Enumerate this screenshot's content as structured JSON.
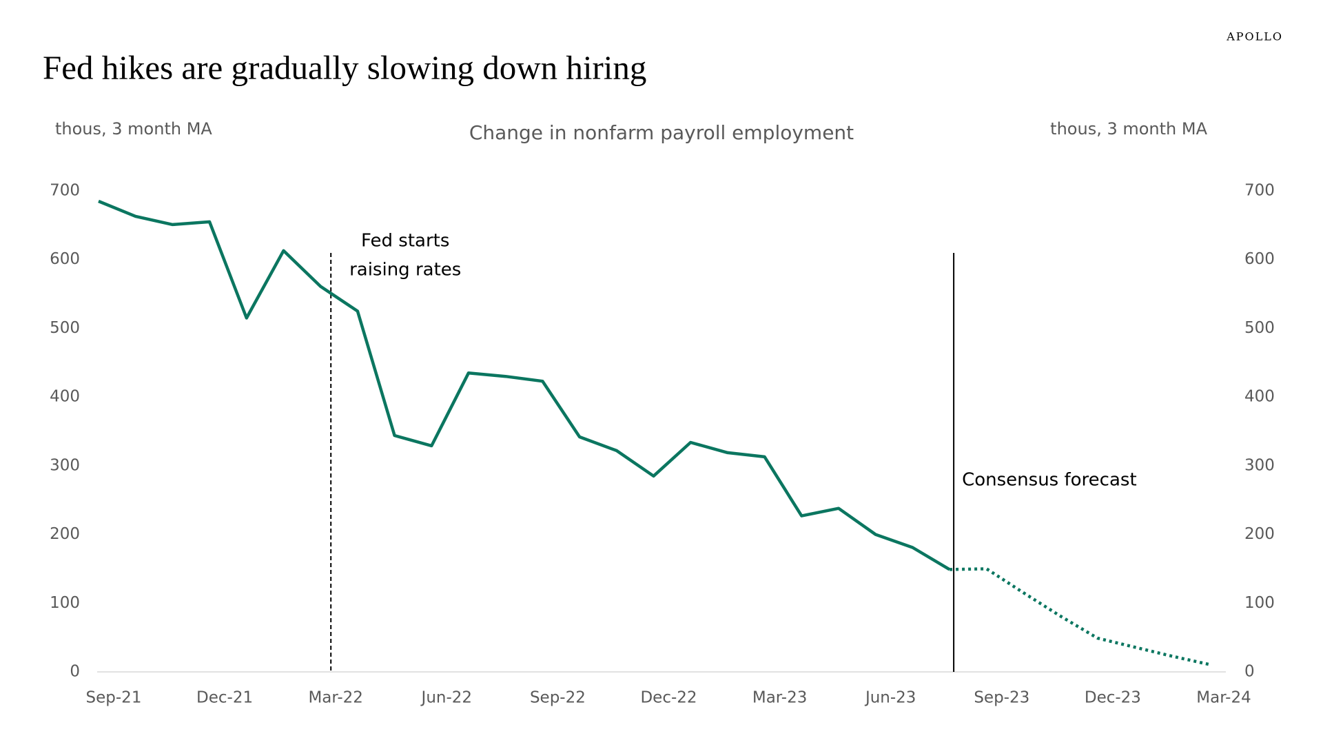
{
  "chart_data": {
    "type": "line",
    "brand": "APOLLO",
    "title": "Fed hikes are gradually slowing down hiring",
    "subtitle": "Change in nonfarm payroll employment",
    "y_label": "thous, 3 month MA",
    "y2_label": "thous, 3 month MA",
    "categories": [
      "Sep-21",
      null,
      null,
      "Dec-21",
      null,
      null,
      "Mar-22",
      null,
      null,
      "Jun-22",
      null,
      null,
      "Sep-22",
      null,
      null,
      "Dec-22",
      null,
      null,
      "Mar-23",
      null,
      null,
      "Jun-23",
      null,
      null,
      "Sep-23",
      null,
      null,
      "Dec-23",
      null,
      null,
      "Mar-24"
    ],
    "series": [
      {
        "color": "#0b7660",
        "style": "solid",
        "values": [
          685,
          663,
          651,
          655,
          515,
          613,
          561,
          525,
          344,
          329,
          435,
          430,
          423,
          342,
          322,
          285,
          334,
          319,
          313,
          227,
          238,
          200,
          181,
          149,
          null,
          null,
          null,
          null,
          null,
          null,
          null
        ]
      },
      {
        "color": "#0b7660",
        "style": "dotted",
        "values": [
          null,
          null,
          null,
          null,
          null,
          null,
          null,
          null,
          null,
          null,
          null,
          null,
          null,
          null,
          null,
          null,
          null,
          null,
          null,
          null,
          null,
          null,
          null,
          149,
          150,
          115,
          81,
          49,
          36,
          23,
          11
        ]
      }
    ],
    "ylim": [
      0,
      700
    ],
    "yticks": [
      0,
      100,
      200,
      300,
      400,
      500,
      600,
      700
    ],
    "y2lim": [
      0,
      700
    ],
    "y2ticks": [
      0,
      100,
      200,
      300,
      400,
      500,
      600,
      700
    ],
    "annotations": [
      {
        "lines": [
          "Fed starts",
          "raising rates"
        ],
        "index": 6,
        "style": "dashed"
      },
      {
        "lines": [
          "Consensus forecast"
        ],
        "index": 23,
        "style": "solid"
      }
    ]
  }
}
